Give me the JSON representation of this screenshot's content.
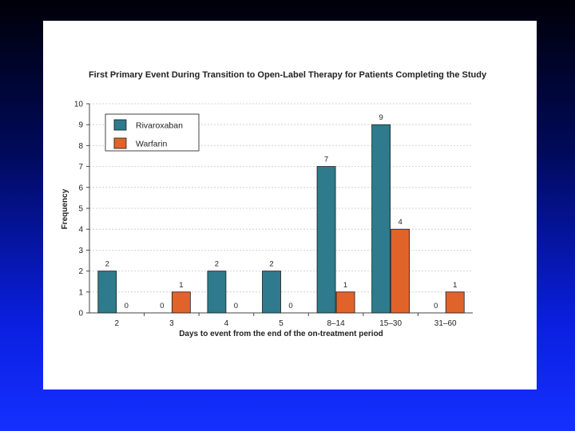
{
  "chart_data": {
    "type": "bar",
    "title": "First Primary Event During Transition to Open-Label Therapy for Patients Completing the Study",
    "xlabel": "Days to event from the end of the on-treatment period",
    "ylabel": "Frequency",
    "ylim": [
      0,
      10
    ],
    "yticks": [
      "0",
      "1",
      "2",
      "3",
      "4",
      "5",
      "6",
      "7",
      "8",
      "9",
      "10"
    ],
    "grid": true,
    "legend": "top-left",
    "categories": [
      "2",
      "3",
      "4",
      "5",
      "8–14",
      "15–30",
      "31–60"
    ],
    "series": [
      {
        "name": "Rivaroxaban",
        "color": "#2f7a8c",
        "values": [
          2,
          0,
          2,
          2,
          7,
          9,
          0
        ]
      },
      {
        "name": "Warfarin",
        "color": "#e0642a",
        "values": [
          0,
          1,
          0,
          0,
          1,
          4,
          1
        ]
      }
    ]
  }
}
